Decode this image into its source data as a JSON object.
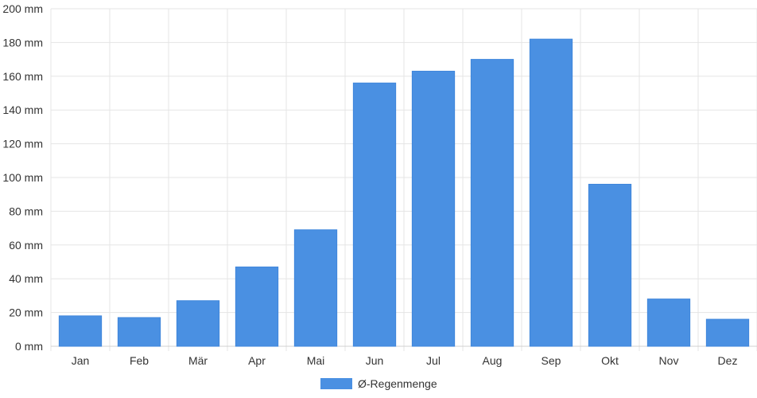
{
  "chart_data": {
    "type": "bar",
    "categories": [
      "Jan",
      "Feb",
      "Mär",
      "Apr",
      "Mai",
      "Jun",
      "Jul",
      "Aug",
      "Sep",
      "Okt",
      "Nov",
      "Dez"
    ],
    "series": [
      {
        "name": "Ø-Regenmenge",
        "values": [
          18,
          17,
          27,
          47,
          69,
          156,
          163,
          170,
          182,
          96,
          28,
          16
        ],
        "color": "#4a90e2"
      }
    ],
    "y_ticks": [
      "0 mm",
      "20 mm",
      "40 mm",
      "60 mm",
      "80 mm",
      "100 mm",
      "120 mm",
      "140 mm",
      "160 mm",
      "180 mm",
      "200 mm"
    ],
    "ylim": [
      0,
      200
    ],
    "unit": "mm",
    "grid": true,
    "legend_position": "bottom"
  }
}
